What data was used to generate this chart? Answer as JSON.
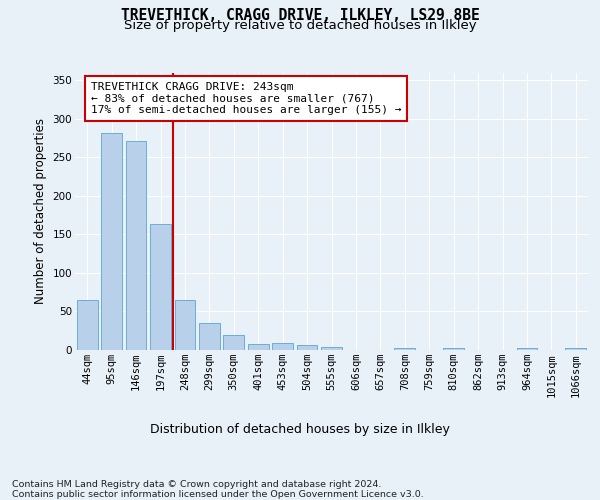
{
  "title_line1": "TREVETHICK, CRAGG DRIVE, ILKLEY, LS29 8BE",
  "title_line2": "Size of property relative to detached houses in Ilkley",
  "xlabel": "Distribution of detached houses by size in Ilkley",
  "ylabel": "Number of detached properties",
  "bin_labels": [
    "44sqm",
    "95sqm",
    "146sqm",
    "197sqm",
    "248sqm",
    "299sqm",
    "350sqm",
    "401sqm",
    "453sqm",
    "504sqm",
    "555sqm",
    "606sqm",
    "657sqm",
    "708sqm",
    "759sqm",
    "810sqm",
    "862sqm",
    "913sqm",
    "964sqm",
    "1015sqm",
    "1066sqm"
  ],
  "bar_values": [
    65,
    282,
    271,
    163,
    65,
    35,
    20,
    8,
    9,
    6,
    4,
    0,
    0,
    3,
    0,
    2,
    0,
    0,
    2,
    0,
    2
  ],
  "bar_color": "#b8d0ea",
  "bar_edge_color": "#6aaed6",
  "vline_index": 3.5,
  "vline_color": "#cc0000",
  "annotation_text": "TREVETHICK CRAGG DRIVE: 243sqm\n← 83% of detached houses are smaller (767)\n17% of semi-detached houses are larger (155) →",
  "annotation_box_facecolor": "#ffffff",
  "annotation_box_edgecolor": "#cc0000",
  "ylim": [
    0,
    360
  ],
  "yticks": [
    0,
    50,
    100,
    150,
    200,
    250,
    300,
    350
  ],
  "footer_text": "Contains HM Land Registry data © Crown copyright and database right 2024.\nContains public sector information licensed under the Open Government Licence v3.0.",
  "bg_color": "#e8f0f8",
  "grid_color": "#ffffff",
  "title_fontsize": 10.5,
  "subtitle_fontsize": 9.5,
  "ylabel_fontsize": 8.5,
  "xlabel_fontsize": 9,
  "tick_fontsize": 7.5,
  "annotation_fontsize": 8,
  "footer_fontsize": 6.8
}
